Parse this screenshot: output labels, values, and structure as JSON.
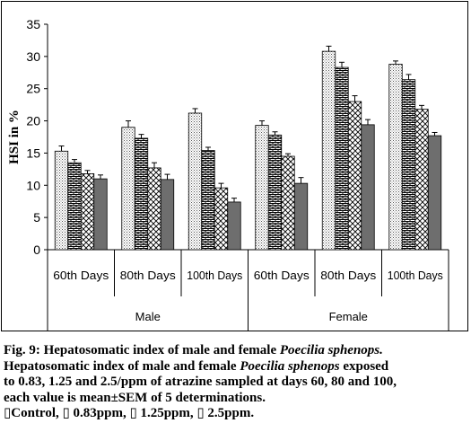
{
  "chart_data": {
    "type": "bar",
    "ylabel": "HSI in %",
    "xlabel": "",
    "ylim": [
      0,
      35
    ],
    "yticks": [
      0,
      5,
      10,
      15,
      20,
      25,
      30,
      35
    ],
    "grid": false,
    "groups": [
      {
        "label": "Male",
        "categories": [
          "60th Days",
          "80th Days",
          "100th Days"
        ]
      },
      {
        "label": "Female",
        "categories": [
          "60th Days",
          "80th Days",
          "100th Days"
        ]
      }
    ],
    "series": [
      {
        "name": "Control",
        "values": [
          15.3,
          19.0,
          21.2,
          19.3,
          30.8,
          28.8
        ],
        "errors": [
          0.8,
          1.0,
          0.7,
          0.7,
          0.8,
          0.5
        ]
      },
      {
        "name": "0.83ppm",
        "values": [
          13.5,
          17.3,
          15.4,
          17.8,
          28.3,
          26.4
        ],
        "errors": [
          0.5,
          0.6,
          0.5,
          0.5,
          0.8,
          0.8
        ]
      },
      {
        "name": "1.25ppm",
        "values": [
          11.8,
          12.7,
          9.6,
          14.5,
          23.0,
          21.8
        ],
        "errors": [
          0.5,
          0.8,
          0.7,
          0.4,
          0.9,
          0.6
        ]
      },
      {
        "name": "2.5ppm",
        "values": [
          11.0,
          10.9,
          7.4,
          10.3,
          19.4,
          17.7
        ],
        "errors": [
          0.6,
          0.8,
          0.6,
          0.9,
          0.8,
          0.5
        ]
      }
    ],
    "patterns": [
      "dots",
      "brick",
      "crosshatch",
      "solid"
    ]
  },
  "caption": {
    "line1_prefix": "Fig. 9: Hepatosomatic index of male and female ",
    "line1_species": "Poecilia sphenops.",
    "line2_prefix": "Hepatosomatic index of male and female ",
    "line2_species": "Poecilia sphenops",
    "line2_suffix": " exposed",
    "line3": "to 0.83, 1.25 and 2.5/ppm of atrazine sampled at days 60, 80 and 100,",
    "line4": "each value is mean±SEM of 5 determinations.",
    "legend": [
      {
        "mark": "▯",
        "text": "Control, "
      },
      {
        "mark": "▯",
        "text": " 0.83ppm, "
      },
      {
        "mark": "▯",
        "text": " 1.25ppm, "
      },
      {
        "mark": "▯",
        "text": " 2.5ppm."
      }
    ]
  }
}
